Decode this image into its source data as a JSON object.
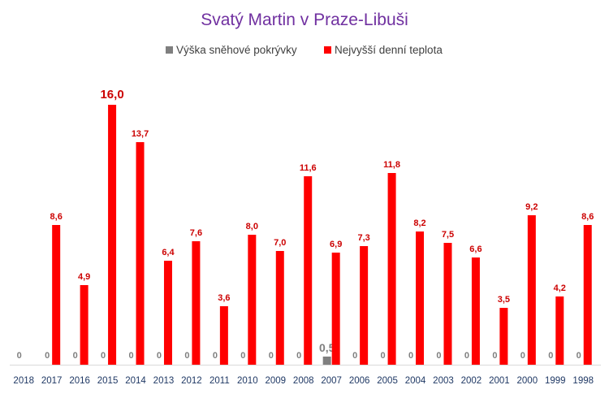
{
  "chart_data": {
    "type": "bar",
    "title": "Svatý Martin v Praze-Libuši",
    "categories": [
      "2018",
      "2017",
      "2016",
      "2015",
      "2014",
      "2013",
      "2012",
      "2011",
      "2010",
      "2009",
      "2008",
      "2007",
      "2006",
      "2005",
      "2004",
      "2003",
      "2002",
      "2001",
      "2000",
      "1999",
      "1998"
    ],
    "series": [
      {
        "name": "Výška sněhové pokrývky",
        "color": "#7f7f7f",
        "values": [
          0,
          0,
          0,
          0,
          0,
          0,
          0,
          0,
          0,
          0,
          0,
          0.5,
          0,
          0,
          0,
          0,
          0,
          0,
          0,
          0,
          0
        ],
        "labels": [
          "0",
          "0",
          "0",
          "0",
          "0",
          "0",
          "0",
          "0",
          "0",
          "0",
          "0",
          "0,5",
          "0",
          "0",
          "0",
          "0",
          "0",
          "0",
          "0",
          "0",
          "0"
        ]
      },
      {
        "name": "Nejvyšší denní teplota",
        "color": "#ff0000",
        "values": [
          null,
          8.6,
          4.9,
          16.0,
          13.7,
          6.4,
          7.6,
          3.6,
          8.0,
          7.0,
          11.6,
          6.9,
          7.3,
          11.8,
          8.2,
          7.5,
          6.6,
          3.5,
          9.2,
          4.2,
          8.6
        ],
        "labels": [
          "",
          "8,6",
          "4,9",
          "16,0",
          "13,7",
          "6,4",
          "7,6",
          "3,6",
          "8,0",
          "7,0",
          "11,6",
          "6,9",
          "7,3",
          "11,8",
          "8,2",
          "7,5",
          "6,6",
          "3,5",
          "9,2",
          "4,2",
          "8,6"
        ]
      }
    ],
    "ylim": [
      0,
      16.6
    ],
    "legend_position": "top-center",
    "grid": false,
    "label_colors": {
      "snow": "#7f7f7f",
      "temp": "#cc0000",
      "title": "#7030a0",
      "axis": "#1f3864"
    }
  }
}
